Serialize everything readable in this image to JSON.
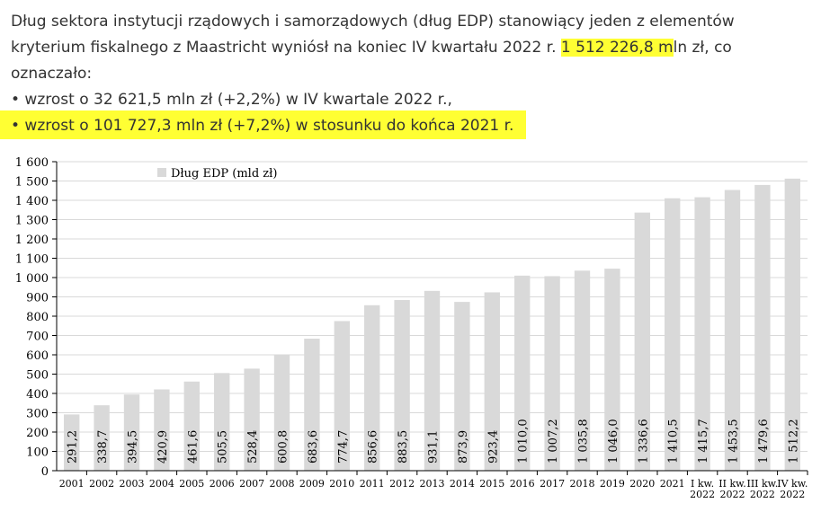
{
  "intro": {
    "line1": "Dług sektora instytucji rządowych i samorządowych (dług EDP) stanowiący jeden z elementów",
    "line2_pre": "kryterium fiskalnego z Maastricht wyniósł na koniec IV kwartału 2022 r. ",
    "line2_hl": "1 512 226,8 m",
    "line2_post": "ln zł, co",
    "line3": "oznaczało:",
    "line4": "• wzrost o 32 621,5 mln zł (+2,2%) w IV kwartale 2022 r.,",
    "line5": "• wzrost o 101 727,3 mln zł (+7,2%) w stosunku do końca 2021 r."
  },
  "colors": {
    "highlight": "#ffff33",
    "bar": "#d9d9d9",
    "grid": "#d9d9d9",
    "axis": "#000000",
    "text": "#333333"
  },
  "chart_data": {
    "type": "bar",
    "title": "",
    "xlabel": "",
    "ylabel": "",
    "legend": "Dług EDP (mld zł)",
    "legend_position": "top-left",
    "grid": true,
    "ylim": [
      0,
      1600
    ],
    "yticks": [
      "0",
      "100",
      "200",
      "300",
      "400",
      "500",
      "600",
      "700",
      "800",
      "900",
      "1 000",
      "1 100",
      "1 200",
      "1 300",
      "1 400",
      "1 500",
      "1 600"
    ],
    "categories": [
      [
        "2001"
      ],
      [
        "2002"
      ],
      [
        "2003"
      ],
      [
        "2004"
      ],
      [
        "2005"
      ],
      [
        "2006"
      ],
      [
        "2007"
      ],
      [
        "2008"
      ],
      [
        "2009"
      ],
      [
        "2010"
      ],
      [
        "2011"
      ],
      [
        "2012"
      ],
      [
        "2013"
      ],
      [
        "2014"
      ],
      [
        "2015"
      ],
      [
        "2016"
      ],
      [
        "2017"
      ],
      [
        "2018"
      ],
      [
        "2019"
      ],
      [
        "2020"
      ],
      [
        "2021"
      ],
      [
        "I kw.",
        "2022"
      ],
      [
        "II kw.",
        "2022"
      ],
      [
        "III kw.",
        "2022"
      ],
      [
        "IV kw.",
        "2022"
      ]
    ],
    "values": [
      291.2,
      338.7,
      394.5,
      420.9,
      461.6,
      505.5,
      528.4,
      600.8,
      683.6,
      774.7,
      856.6,
      883.5,
      931.1,
      873.9,
      923.4,
      1010.0,
      1007.2,
      1035.8,
      1046.0,
      1336.6,
      1410.5,
      1415.7,
      1453.5,
      1479.6,
      1512.2
    ],
    "labels": [
      "291,2",
      "338,7",
      "394,5",
      "420,9",
      "461,6",
      "505,5",
      "528,4",
      "600,8",
      "683,6",
      "774,7",
      "856,6",
      "883,5",
      "931,1",
      "873,9",
      "923,4",
      "1 010,0",
      "1 007,2",
      "1 035,8",
      "1 046,0",
      "1 336,6",
      "1 410,5",
      "1 415,7",
      "1 453,5",
      "1 479,6",
      "1 512,2"
    ]
  }
}
